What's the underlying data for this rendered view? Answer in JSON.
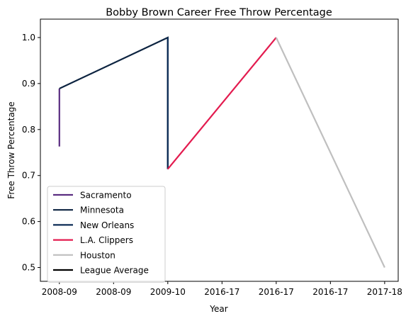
{
  "chart_data": {
    "type": "line",
    "title": "Bobby Brown  Career Free Throw Percentage",
    "xlabel": "Year",
    "ylabel": "Free Throw Percentage",
    "x_tick_labels": [
      "2008-09",
      "2008-09",
      "2009-10",
      "2016-17",
      "2016-17",
      "2016-17",
      "2017-18"
    ],
    "xlim": [
      -0.35,
      6.25
    ],
    "ylim": [
      0.47,
      1.04
    ],
    "y_ticks": [
      0.5,
      0.6,
      0.7,
      0.8,
      0.9,
      1.0
    ],
    "y_tick_labels": [
      "0.5",
      "0.6",
      "0.7",
      "0.8",
      "0.9",
      "1.0"
    ],
    "grid": false,
    "legend_position": "lower-left",
    "series": [
      {
        "name": "Sacramento",
        "color": "#5a2d81",
        "x": [
          0,
          0
        ],
        "y": [
          0.763,
          0.889
        ]
      },
      {
        "name": "Minnesota",
        "color": "#0c2340",
        "x": [
          0,
          2,
          2
        ],
        "y": [
          0.889,
          1.0,
          0.714
        ]
      },
      {
        "name": "New Orleans",
        "color": "#0c2c56",
        "x": [
          2,
          2
        ],
        "y": [
          1.0,
          0.714
        ]
      },
      {
        "name": "L.A. Clippers",
        "color": "#e31b4f",
        "x": [
          2,
          4
        ],
        "y": [
          0.714,
          1.0
        ]
      },
      {
        "name": "Houston",
        "color": "#bfbfbf",
        "x": [
          4,
          6
        ],
        "y": [
          1.0,
          0.5
        ]
      },
      {
        "name": "League Average",
        "color": "#000000",
        "x": [],
        "y": []
      }
    ]
  }
}
